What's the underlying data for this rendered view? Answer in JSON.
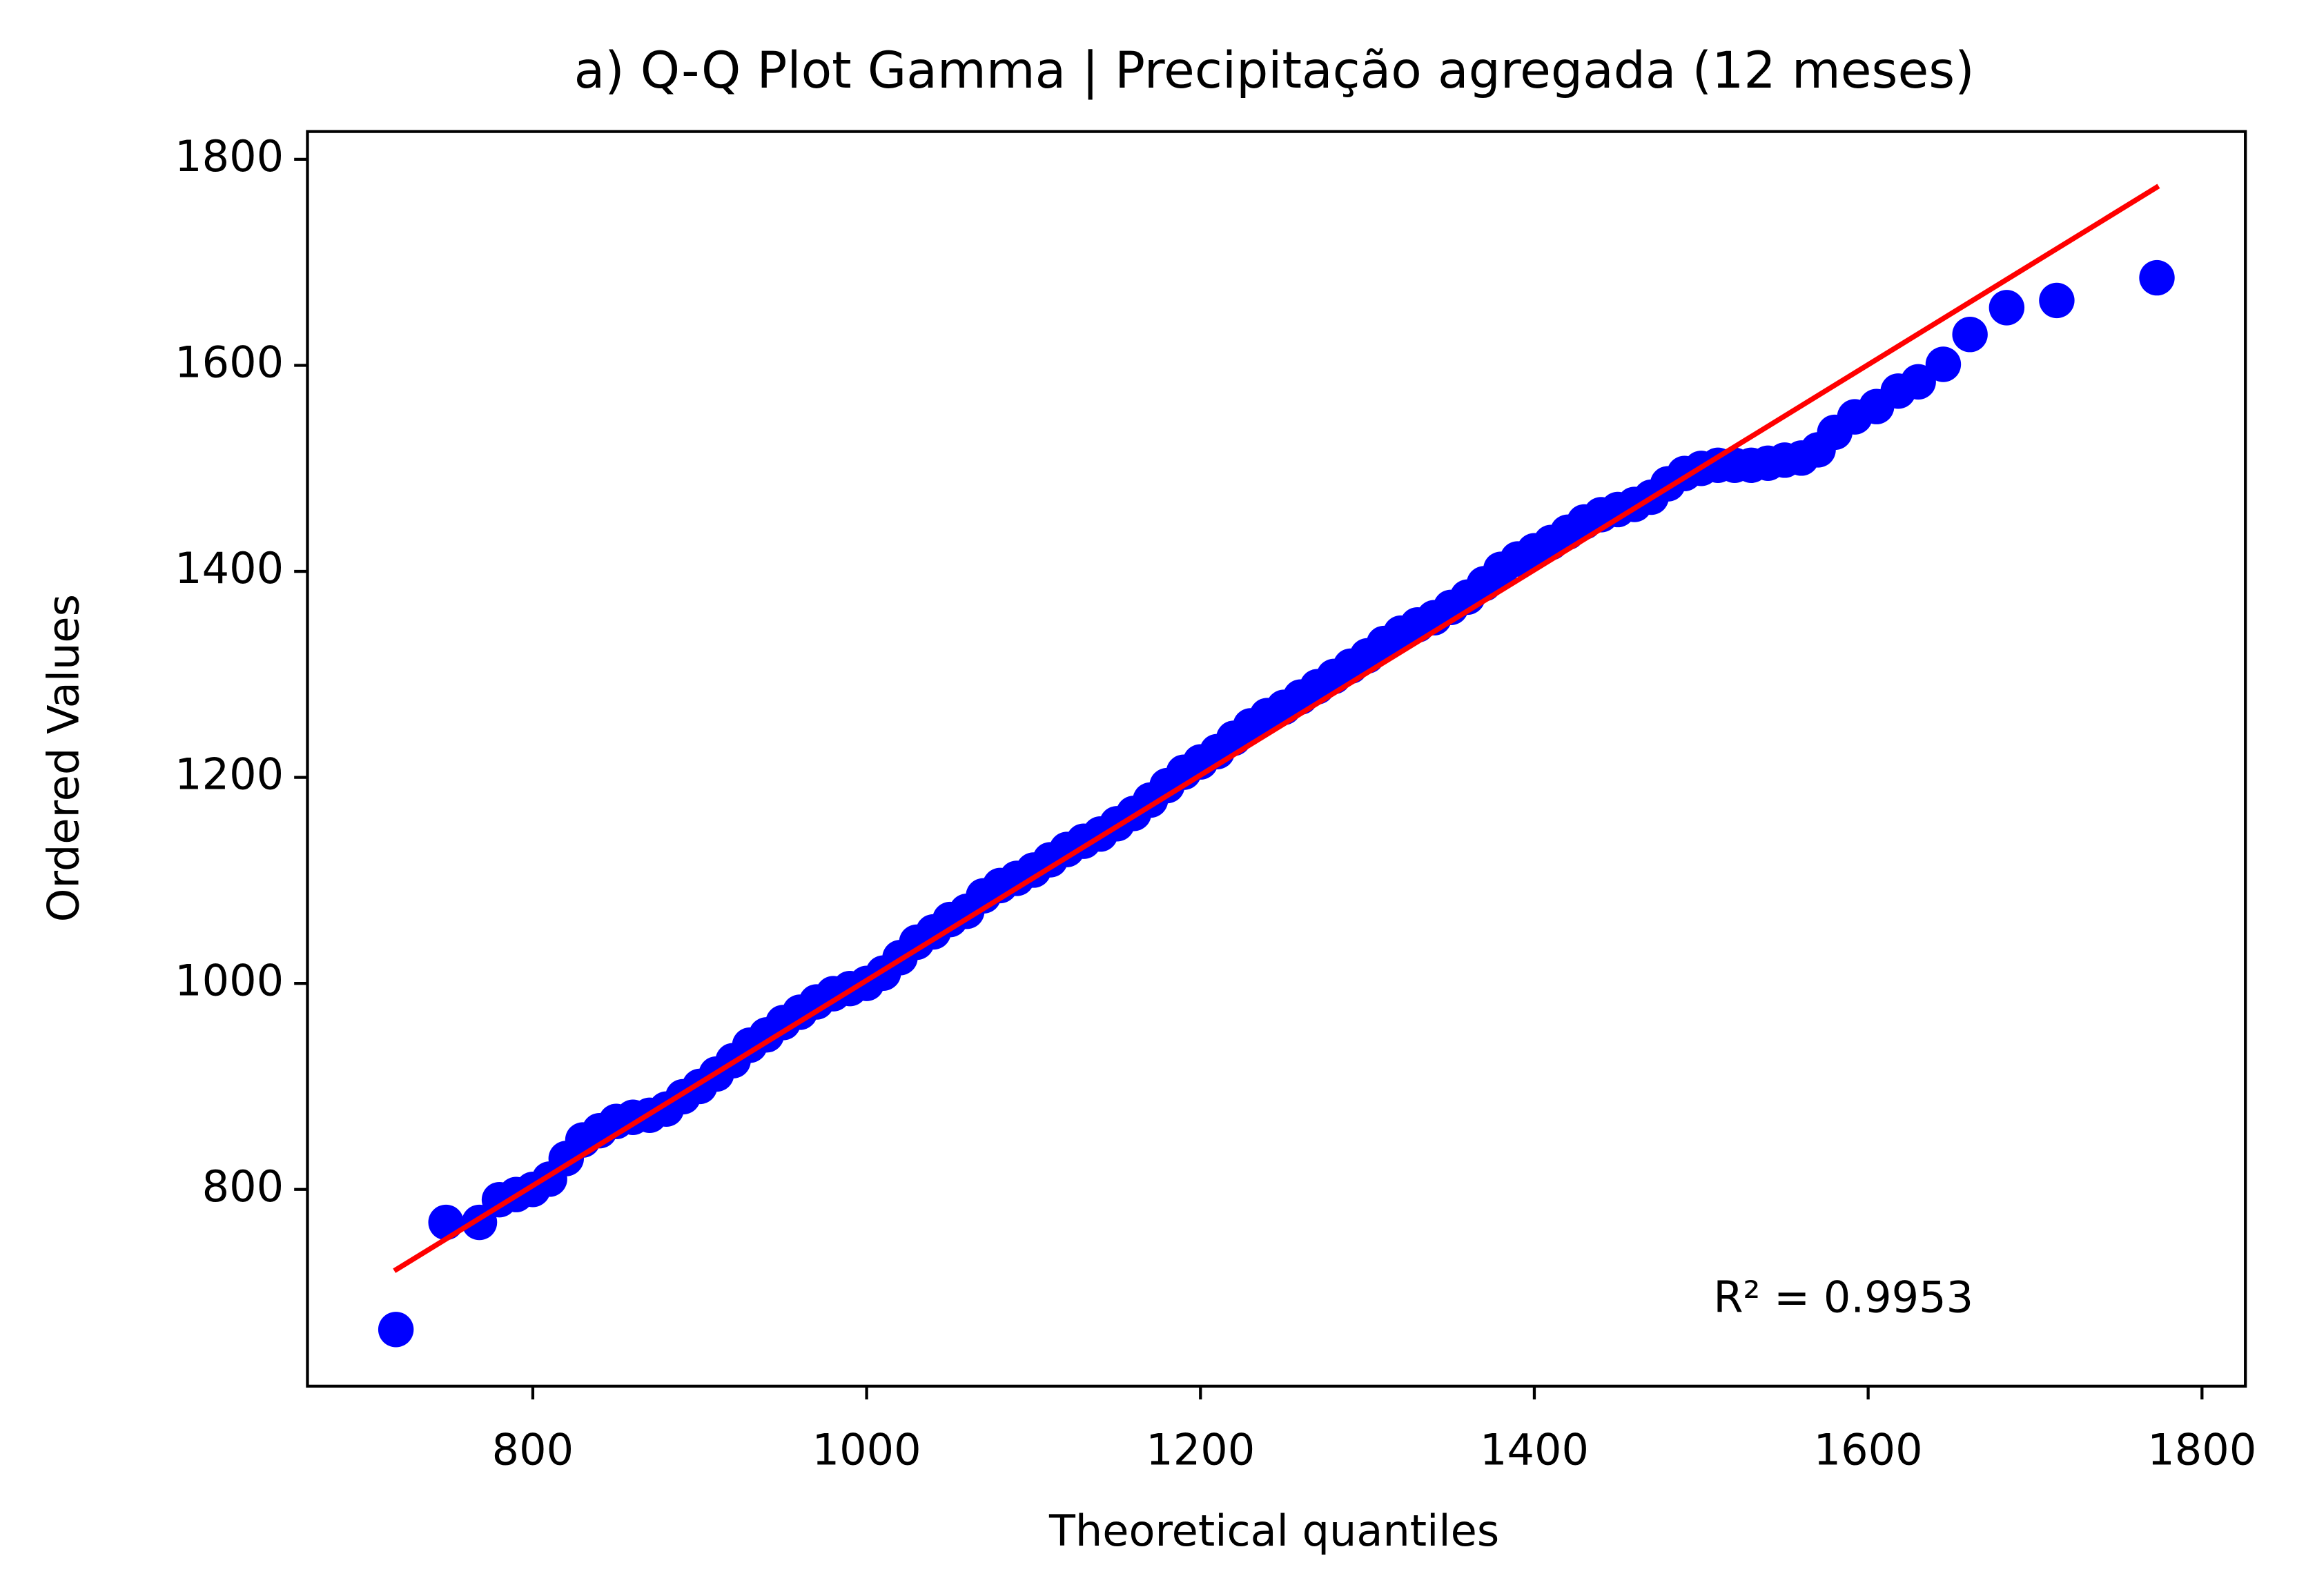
{
  "chart_data": {
    "type": "scatter",
    "title": "a) Q-Q Plot Gamma | Precipitação agregada (12 meses)",
    "xlabel": "Theoretical quantiles",
    "ylabel": "Ordered Values",
    "annotation": "R² = 0.9953",
    "color": "#0000ff",
    "x": [
      718,
      748,
      768,
      780,
      790,
      800,
      810,
      820,
      830,
      840,
      850,
      860,
      870,
      880,
      890,
      900,
      910,
      920,
      930,
      940,
      950,
      960,
      970,
      980,
      990,
      1000,
      1010,
      1020,
      1030,
      1040,
      1050,
      1060,
      1070,
      1080,
      1090,
      1100,
      1110,
      1120,
      1130,
      1140,
      1150,
      1160,
      1170,
      1180,
      1190,
      1200,
      1210,
      1220,
      1230,
      1240,
      1250,
      1260,
      1270,
      1280,
      1290,
      1300,
      1310,
      1320,
      1330,
      1340,
      1350,
      1360,
      1370,
      1380,
      1390,
      1400,
      1410,
      1420,
      1430,
      1440,
      1450,
      1460,
      1470,
      1480,
      1490,
      1500,
      1510,
      1520,
      1530,
      1540,
      1550,
      1560,
      1570,
      1580,
      1592,
      1605,
      1618,
      1630,
      1645,
      1661,
      1683,
      1713,
      1773
    ],
    "values": [
      664,
      768,
      768,
      790,
      795,
      800,
      810,
      830,
      848,
      857,
      866,
      870,
      872,
      878,
      890,
      900,
      912,
      925,
      940,
      950,
      962,
      972,
      982,
      990,
      995,
      1000,
      1010,
      1025,
      1040,
      1050,
      1062,
      1070,
      1085,
      1095,
      1102,
      1110,
      1120,
      1130,
      1138,
      1145,
      1155,
      1165,
      1178,
      1192,
      1205,
      1215,
      1225,
      1238,
      1250,
      1260,
      1268,
      1278,
      1288,
      1298,
      1308,
      1318,
      1330,
      1340,
      1348,
      1355,
      1365,
      1375,
      1388,
      1402,
      1412,
      1420,
      1428,
      1438,
      1448,
      1455,
      1460,
      1465,
      1472,
      1485,
      1495,
      1500,
      1503,
      1503,
      1503,
      1505,
      1508,
      1510,
      1518,
      1535,
      1550,
      1560,
      1575,
      1584,
      1601,
      1630,
      1656,
      1663,
      1685
    ],
    "fit": {
      "x": [
        717,
        1774
      ],
      "values": [
        721,
        1774
      ],
      "color": "#ff0000"
    },
    "xlim": [
      665,
      1826
    ],
    "ylim": [
      609,
      1827
    ],
    "xticks": [
      800,
      1000,
      1200,
      1400,
      1600,
      1800
    ],
    "yticks": [
      800,
      1000,
      1200,
      1400,
      1600,
      1800
    ]
  }
}
